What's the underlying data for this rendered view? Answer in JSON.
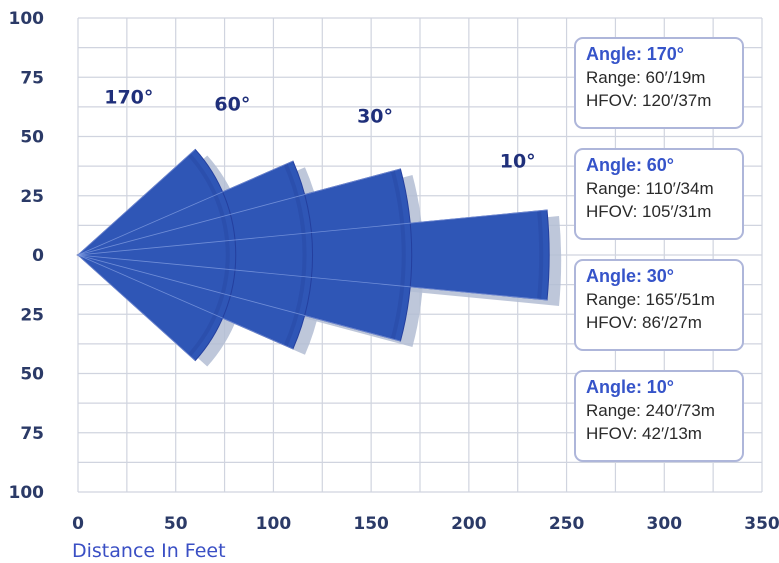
{
  "chart_data": {
    "type": "diagram",
    "xlabel": "Distance In Feet",
    "x_ticks": [
      "0",
      "50",
      "100",
      "150",
      "200",
      "250",
      "300",
      "350"
    ],
    "y_ticks": [
      "100",
      "75",
      "50",
      "25",
      "0",
      "25",
      "50",
      "75",
      "100"
    ],
    "xlim": [
      0,
      350
    ],
    "ylim": [
      -100,
      100
    ],
    "grid": true,
    "lobes": [
      {
        "angle_label": "170°",
        "angle_deg": 170,
        "range_ft": 60,
        "half_width_ft": 54,
        "label_x": 26,
        "label_y": 64
      },
      {
        "angle_label": "60°",
        "angle_deg": 60,
        "range_ft": 110,
        "half_width_ft": 48,
        "label_x": 79,
        "label_y": 61
      },
      {
        "angle_label": "30°",
        "angle_deg": 30,
        "range_ft": 165,
        "half_width_ft": 44,
        "label_x": 152,
        "label_y": 56
      },
      {
        "angle_label": "10°",
        "angle_deg": 10,
        "range_ft": 240,
        "half_width_ft": 23,
        "label_x": 225,
        "label_y": 37
      }
    ],
    "colors": {
      "lobe": "#2f56b6",
      "lobe_edge": "#243f9e",
      "shadow": "#b3bdd3",
      "grid": "#d0d4df"
    }
  },
  "info_boxes": [
    {
      "angle_title": "Angle:",
      "angle_value": "170",
      "degree": "°",
      "range": "Range: 60′/19m",
      "hfov": "HFOV: 120′/37m"
    },
    {
      "angle_title": "Angle:",
      "angle_value": "60",
      "degree": "°",
      "range": "Range: 110′/34m",
      "hfov": "HFOV: 105′/31m"
    },
    {
      "angle_title": "Angle:",
      "angle_value": "30",
      "degree": "°",
      "range": "Range: 165′/51m",
      "hfov": "HFOV: 86′/27m"
    },
    {
      "angle_title": "Angle:",
      "angle_value": "10",
      "degree": "°",
      "range": "Range: 240′/73m",
      "hfov": "HFOV: 42′/13m"
    }
  ]
}
